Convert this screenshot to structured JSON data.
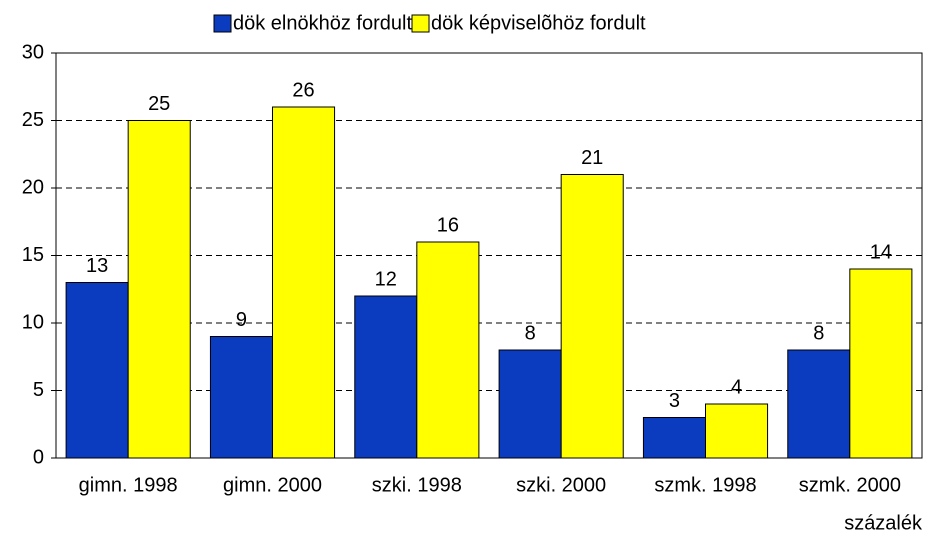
{
  "chart_data": {
    "type": "bar",
    "categories": [
      "gimn. 1998",
      "gimn. 2000",
      "szki. 1998",
      "szki. 2000",
      "szmk. 1998",
      "szmk. 2000"
    ],
    "series": [
      {
        "name": "dök elnökhöz fordult",
        "color": "#0b3bbf",
        "values": [
          13,
          9,
          12,
          8,
          3,
          8
        ]
      },
      {
        "name": "dök képviselõhöz fordult",
        "color": "#ffff00",
        "values": [
          25,
          26,
          16,
          21,
          4,
          14
        ]
      }
    ],
    "y_label": "százalék",
    "ylim": [
      0,
      30
    ],
    "yticks": [
      0,
      5,
      10,
      15,
      20,
      25,
      30
    ],
    "grid": true,
    "legend": "top"
  }
}
